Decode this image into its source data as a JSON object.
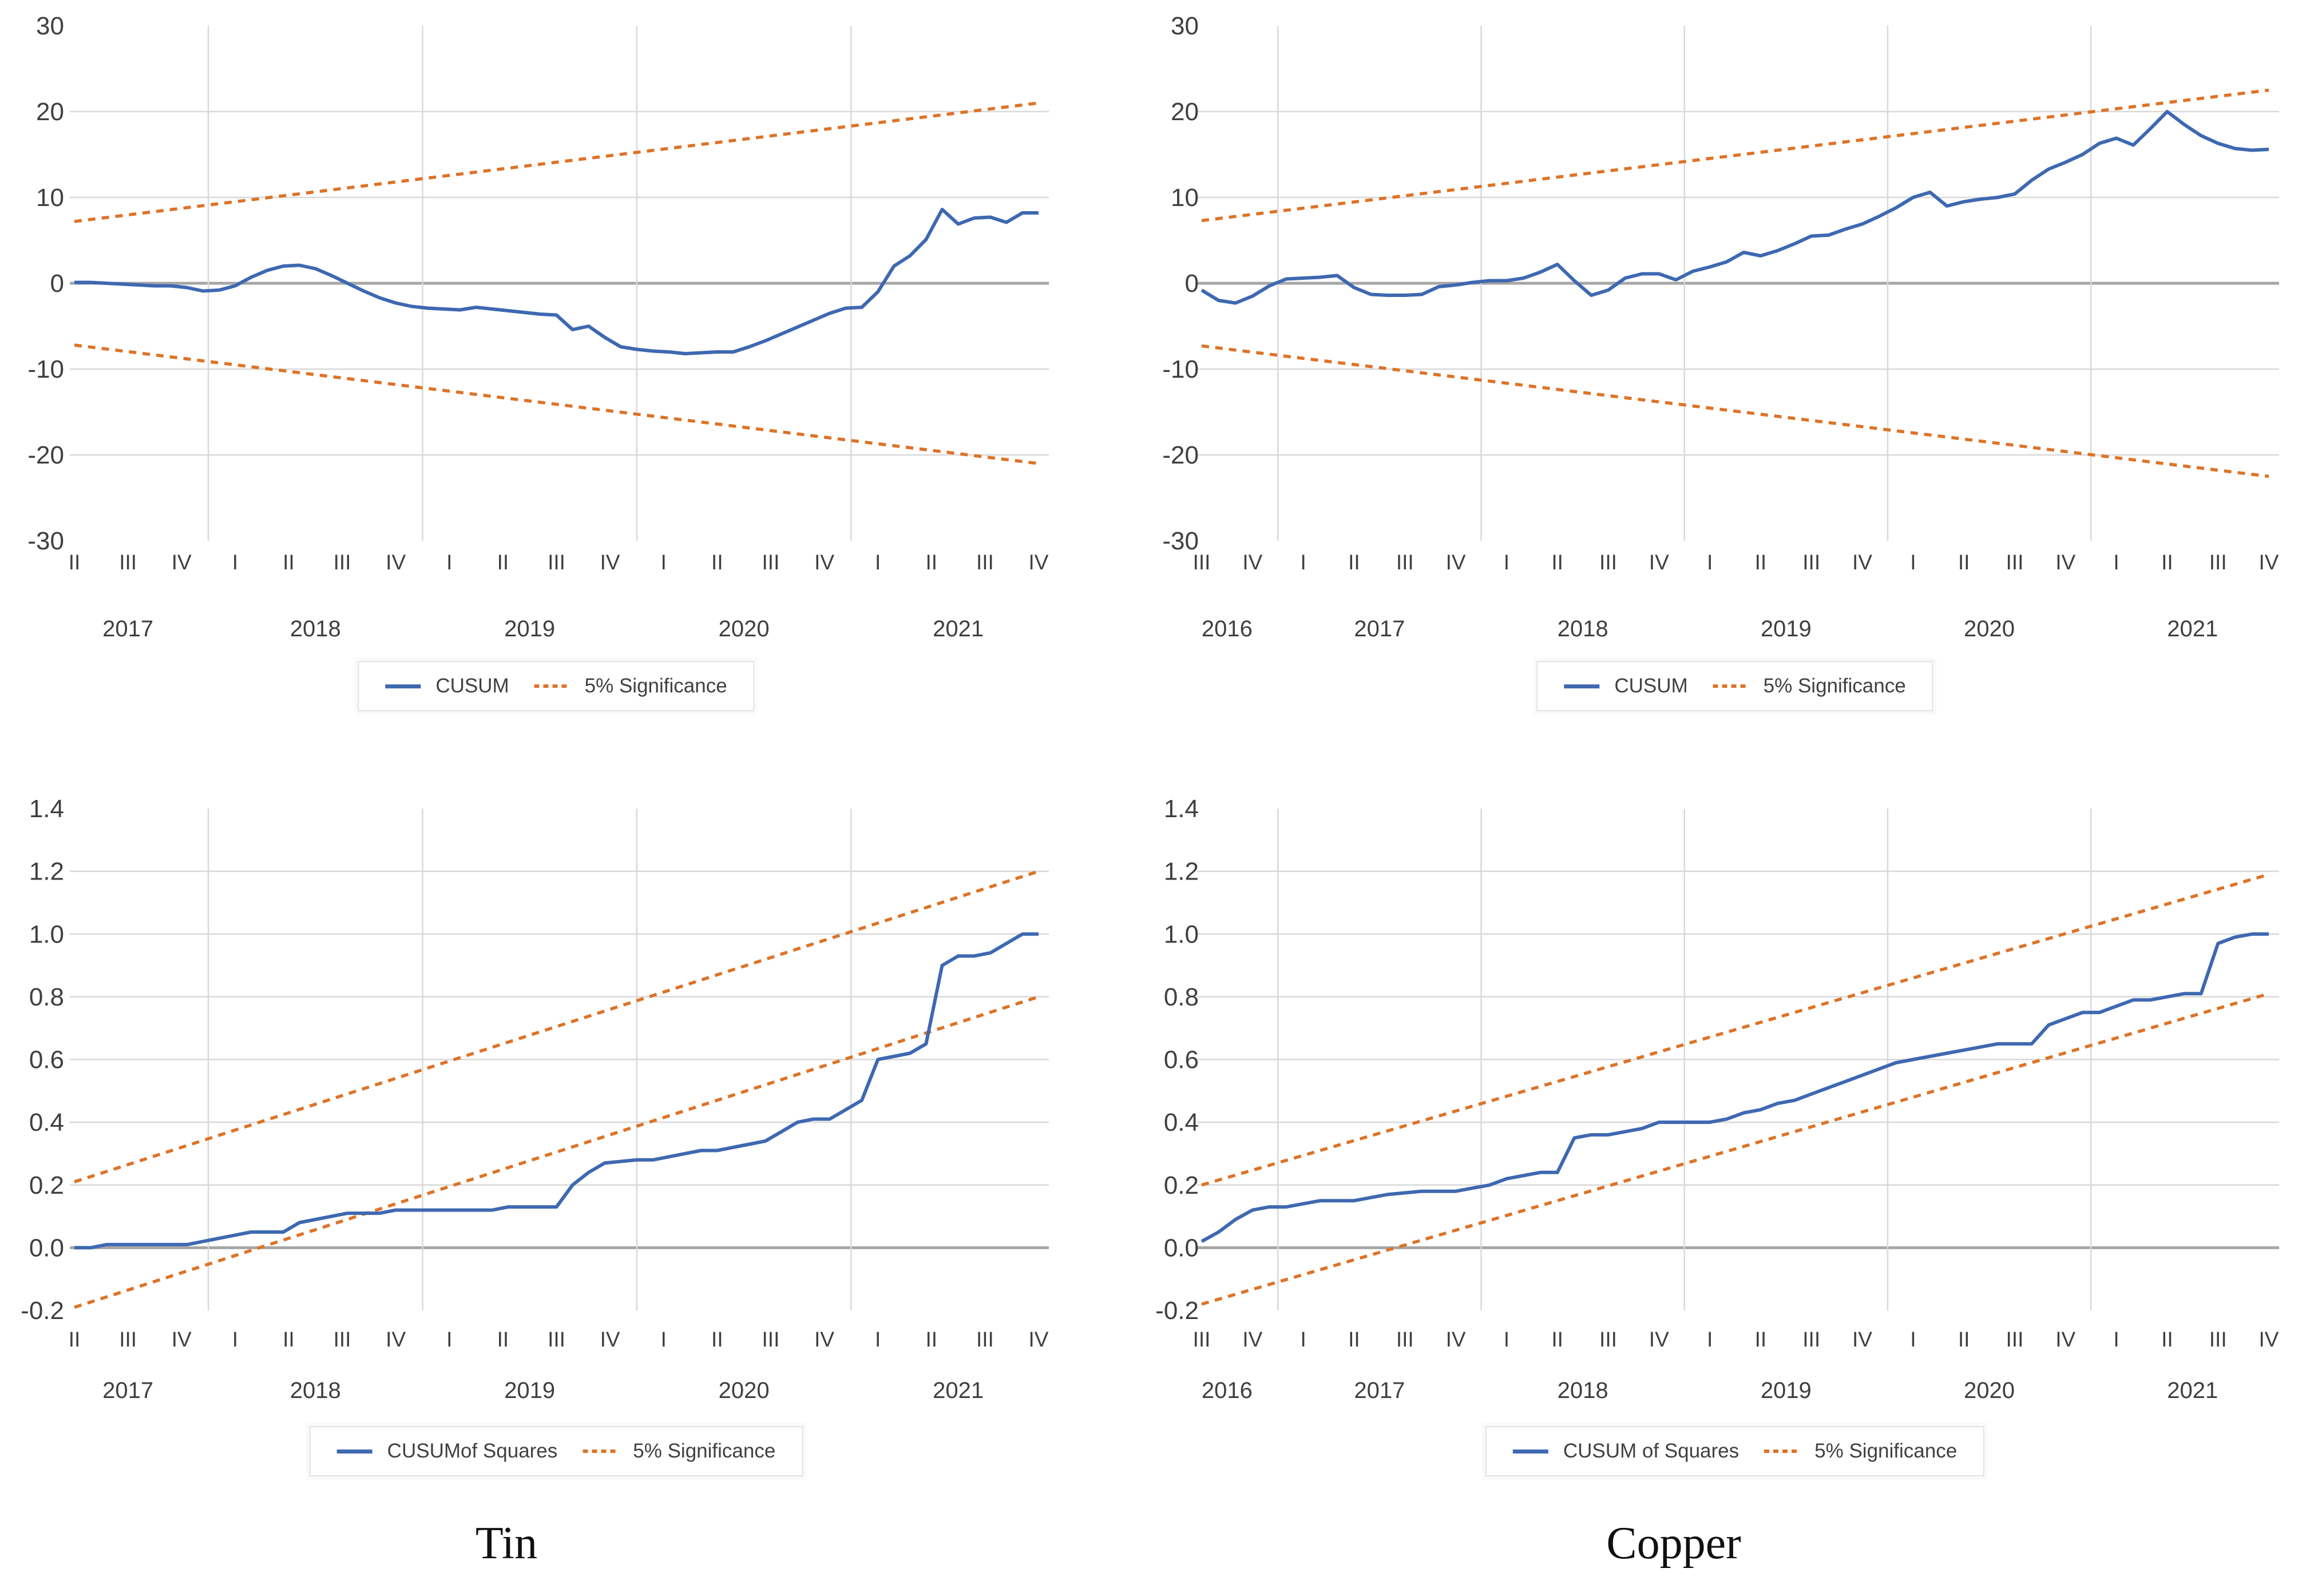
{
  "figure": {
    "left_title": "Tin",
    "right_title": "Copper"
  },
  "colors": {
    "cusum_blue": "#3e68b1",
    "significance_orange": "#dd7327",
    "grid": "#d9d9d9",
    "zero_line": "#a6a6a6",
    "text": "#3f3f3f"
  },
  "chart_data": [
    {
      "id": "tin-cusum",
      "type": "line",
      "title": "",
      "ylabel": "",
      "ylim": [
        -30,
        30
      ],
      "ytick_values": [
        30,
        20,
        10,
        0,
        -10,
        -20,
        -30
      ],
      "ytick_labels": [
        "30",
        "20",
        "10",
        "0",
        "-10",
        "-20",
        "-30"
      ],
      "x_quarters": [
        "II",
        "III",
        "IV",
        "I",
        "II",
        "III",
        "IV",
        "I",
        "II",
        "III",
        "IV",
        "I",
        "II",
        "III",
        "IV",
        "I",
        "II",
        "III",
        "IV"
      ],
      "years": [
        {
          "label": "2017",
          "from": 0,
          "to": 2
        },
        {
          "label": "2018",
          "from": 3,
          "to": 6
        },
        {
          "label": "2019",
          "from": 7,
          "to": 10
        },
        {
          "label": "2020",
          "from": 11,
          "to": 14
        },
        {
          "label": "2021",
          "from": 15,
          "to": 18
        }
      ],
      "legend": [
        {
          "name": "CUSUM",
          "style": "solid"
        },
        {
          "name": "5% Significance",
          "style": "dashed"
        }
      ],
      "series": [
        {
          "name": "CUSUM",
          "values": [
            0.1,
            0.1,
            0.0,
            -0.1,
            -0.2,
            -0.3,
            -0.3,
            -0.5,
            -0.9,
            -0.8,
            -0.3,
            0.7,
            1.5,
            2.0,
            2.1,
            1.7,
            0.9,
            0.0,
            -0.9,
            -1.7,
            -2.3,
            -2.7,
            -2.9,
            -3.0,
            -3.1,
            -2.8,
            -3.0,
            -3.2,
            -3.4,
            -3.6,
            -3.7,
            -5.4,
            -5.0,
            -6.3,
            -7.4,
            -7.7,
            -7.9,
            -8.0,
            -8.2,
            -8.1,
            -8.0,
            -8.0,
            -7.4,
            -6.7,
            -5.9,
            -5.1,
            -4.3,
            -3.5,
            -2.9,
            -2.8,
            -1.0,
            2.0,
            3.2,
            5.1,
            8.6,
            6.9,
            7.6,
            7.7,
            7.1,
            8.2,
            8.2
          ]
        },
        {
          "name": "5% Significance upper",
          "start": 7.2,
          "end": 21.0
        },
        {
          "name": "5% Significance lower",
          "start": -7.2,
          "end": -21.0
        }
      ]
    },
    {
      "id": "copper-cusum",
      "type": "line",
      "title": "",
      "ylabel": "",
      "ylim": [
        -30,
        30
      ],
      "ytick_values": [
        30,
        20,
        10,
        0,
        -10,
        -20,
        -30
      ],
      "ytick_labels": [
        "30",
        "20",
        "10",
        "0",
        "-10",
        "-20",
        "-30"
      ],
      "x_quarters": [
        "III",
        "IV",
        "I",
        "II",
        "III",
        "IV",
        "I",
        "II",
        "III",
        "IV",
        "I",
        "II",
        "III",
        "IV",
        "I",
        "II",
        "III",
        "IV",
        "I",
        "II",
        "III",
        "IV"
      ],
      "years": [
        {
          "label": "2016",
          "from": 0,
          "to": 1
        },
        {
          "label": "2017",
          "from": 2,
          "to": 5
        },
        {
          "label": "2018",
          "from": 6,
          "to": 9
        },
        {
          "label": "2019",
          "from": 10,
          "to": 13
        },
        {
          "label": "2020",
          "from": 14,
          "to": 17
        },
        {
          "label": "2021",
          "from": 18,
          "to": 21
        }
      ],
      "legend": [
        {
          "name": "CUSUM",
          "style": "solid"
        },
        {
          "name": "5% Significance",
          "style": "dashed"
        }
      ],
      "series": [
        {
          "name": "CUSUM",
          "values": [
            -0.8,
            -2.0,
            -2.3,
            -1.5,
            -0.3,
            0.5,
            0.6,
            0.7,
            0.9,
            -0.5,
            -1.3,
            -1.4,
            -1.4,
            -1.3,
            -0.4,
            -0.2,
            0.1,
            0.3,
            0.3,
            0.6,
            1.3,
            2.2,
            0.3,
            -1.4,
            -0.8,
            0.6,
            1.1,
            1.1,
            0.4,
            1.4,
            1.9,
            2.5,
            3.6,
            3.2,
            3.8,
            4.6,
            5.5,
            5.6,
            6.3,
            6.9,
            7.8,
            8.8,
            10.0,
            10.6,
            9.0,
            9.5,
            9.8,
            10.0,
            10.4,
            12.0,
            13.3,
            14.1,
            15.0,
            16.3,
            16.9,
            16.1,
            18.0,
            20.0,
            18.5,
            17.2,
            16.3,
            15.7,
            15.5,
            15.6
          ]
        },
        {
          "name": "5% Significance upper",
          "start": 7.3,
          "end": 22.5
        },
        {
          "name": "5% Significance lower",
          "start": -7.3,
          "end": -22.5
        }
      ]
    },
    {
      "id": "tin-cusumsq",
      "type": "line",
      "title": "",
      "ylabel": "",
      "ylim": [
        -0.2,
        1.4
      ],
      "ytick_values": [
        1.4,
        1.2,
        1.0,
        0.8,
        0.6,
        0.4,
        0.2,
        0.0,
        -0.2
      ],
      "ytick_labels": [
        "1.4",
        "1.2",
        "1.0",
        "0.8",
        "0.6",
        "0.4",
        "0.2",
        "0.0",
        "-0.2"
      ],
      "x_quarters": [
        "II",
        "III",
        "IV",
        "I",
        "II",
        "III",
        "IV",
        "I",
        "II",
        "III",
        "IV",
        "I",
        "II",
        "III",
        "IV",
        "I",
        "II",
        "III",
        "IV"
      ],
      "years": [
        {
          "label": "2017",
          "from": 0,
          "to": 2
        },
        {
          "label": "2018",
          "from": 3,
          "to": 6
        },
        {
          "label": "2019",
          "from": 7,
          "to": 10
        },
        {
          "label": "2020",
          "from": 11,
          "to": 14
        },
        {
          "label": "2021",
          "from": 15,
          "to": 18
        }
      ],
      "legend": [
        {
          "name": "CUSUMof Squares",
          "style": "solid"
        },
        {
          "name": "5% Significance",
          "style": "dashed"
        }
      ],
      "series": [
        {
          "name": "CUSUM of Squares",
          "values": [
            0.0,
            0.0,
            0.01,
            0.01,
            0.01,
            0.01,
            0.01,
            0.01,
            0.02,
            0.03,
            0.04,
            0.05,
            0.05,
            0.05,
            0.08,
            0.09,
            0.1,
            0.11,
            0.11,
            0.11,
            0.12,
            0.12,
            0.12,
            0.12,
            0.12,
            0.12,
            0.12,
            0.13,
            0.13,
            0.13,
            0.13,
            0.2,
            0.24,
            0.27,
            0.275,
            0.28,
            0.28,
            0.29,
            0.3,
            0.31,
            0.31,
            0.32,
            0.33,
            0.34,
            0.37,
            0.4,
            0.41,
            0.41,
            0.44,
            0.47,
            0.6,
            0.61,
            0.62,
            0.65,
            0.9,
            0.93,
            0.93,
            0.94,
            0.97,
            1.0,
            1.0
          ]
        },
        {
          "name": "5% Significance upper",
          "start": 0.21,
          "end": 1.2
        },
        {
          "name": "5% Significance lower",
          "start": -0.19,
          "end": 0.8
        }
      ]
    },
    {
      "id": "copper-cusumsq",
      "type": "line",
      "title": "",
      "ylabel": "",
      "ylim": [
        -0.2,
        1.4
      ],
      "ytick_values": [
        1.4,
        1.2,
        1.0,
        0.8,
        0.6,
        0.4,
        0.2,
        0.0,
        -0.2
      ],
      "ytick_labels": [
        "1.4",
        "1.2",
        "1.0",
        "0.8",
        "0.6",
        "0.4",
        "0.2",
        "0.0",
        "-0.2"
      ],
      "x_quarters": [
        "III",
        "IV",
        "I",
        "II",
        "III",
        "IV",
        "I",
        "II",
        "III",
        "IV",
        "I",
        "II",
        "III",
        "IV",
        "I",
        "II",
        "III",
        "IV",
        "I",
        "II",
        "III",
        "IV"
      ],
      "years": [
        {
          "label": "2016",
          "from": 0,
          "to": 1
        },
        {
          "label": "2017",
          "from": 2,
          "to": 5
        },
        {
          "label": "2018",
          "from": 6,
          "to": 9
        },
        {
          "label": "2019",
          "from": 10,
          "to": 13
        },
        {
          "label": "2020",
          "from": 14,
          "to": 17
        },
        {
          "label": "2021",
          "from": 18,
          "to": 21
        }
      ],
      "legend": [
        {
          "name": "CUSUM of Squares",
          "style": "solid"
        },
        {
          "name": "5% Significance",
          "style": "dashed"
        }
      ],
      "series": [
        {
          "name": "CUSUM of Squares",
          "values": [
            0.02,
            0.05,
            0.09,
            0.12,
            0.13,
            0.13,
            0.14,
            0.15,
            0.15,
            0.15,
            0.16,
            0.17,
            0.175,
            0.18,
            0.18,
            0.18,
            0.19,
            0.2,
            0.22,
            0.23,
            0.24,
            0.24,
            0.35,
            0.36,
            0.36,
            0.37,
            0.38,
            0.4,
            0.4,
            0.4,
            0.4,
            0.41,
            0.43,
            0.44,
            0.46,
            0.47,
            0.49,
            0.51,
            0.53,
            0.55,
            0.57,
            0.59,
            0.6,
            0.61,
            0.62,
            0.63,
            0.64,
            0.65,
            0.65,
            0.65,
            0.71,
            0.73,
            0.75,
            0.75,
            0.77,
            0.79,
            0.79,
            0.8,
            0.81,
            0.81,
            0.97,
            0.99,
            1.0,
            1.0
          ]
        },
        {
          "name": "5% Significance upper",
          "start": 0.2,
          "end": 1.19
        },
        {
          "name": "5% Significance lower",
          "start": -0.18,
          "end": 0.81
        }
      ]
    }
  ]
}
